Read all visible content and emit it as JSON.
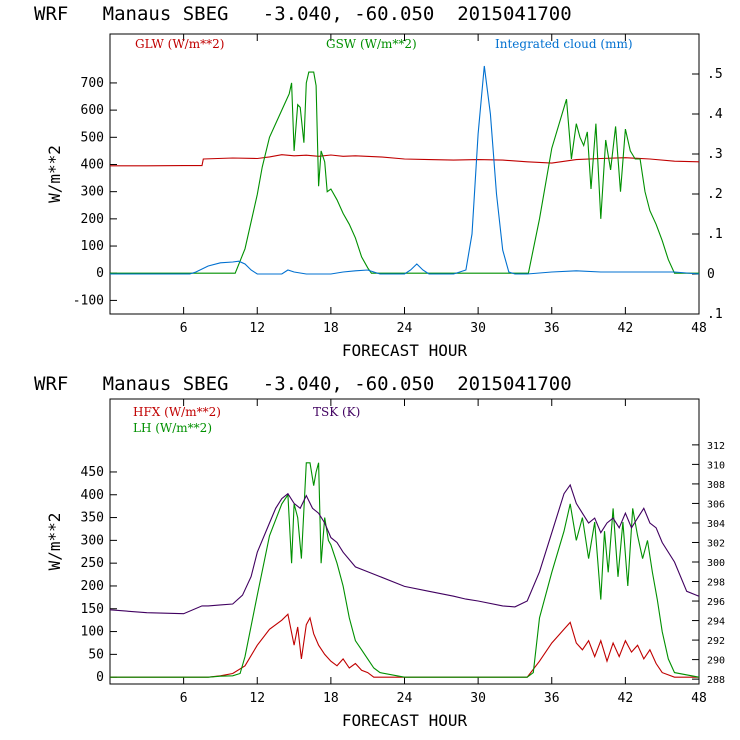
{
  "chart_data": [
    {
      "type": "line",
      "title": "WRF   Manaus SBEG   -3.040, -60.050  2015041700",
      "xlabel": "FORECAST HOUR",
      "ylabel": "W/m**2",
      "xlim": [
        0,
        48
      ],
      "ylim": [
        -150,
        880
      ],
      "y2lim": [
        -0.1,
        0.6
      ],
      "xticks": [
        6,
        12,
        18,
        24,
        30,
        36,
        42,
        48
      ],
      "xtick_labels": [
        "6",
        "12",
        "18",
        "24",
        "30",
        "36",
        "42",
        "48"
      ],
      "yticks": [
        -100,
        0,
        100,
        200,
        300,
        400,
        500,
        600,
        700
      ],
      "ytick_labels": [
        "-100",
        "0",
        "100",
        "200",
        "300",
        "400",
        "500",
        "600",
        "700"
      ],
      "y2ticks": [
        -0.1,
        0,
        0.1,
        0.2,
        0.3,
        0.4,
        0.5
      ],
      "y2tick_labels": [
        ".1",
        "0",
        ".1",
        ".2",
        ".3",
        ".4",
        ".5"
      ],
      "series": [
        {
          "name": "GLW (W/m**2)",
          "color": "#c00000",
          "axis": "left",
          "x": [
            0,
            3,
            6,
            7.5,
            7.6,
            10,
            12,
            13,
            14,
            15,
            16,
            17,
            18,
            19,
            20,
            22,
            24,
            26,
            28,
            30,
            32,
            34,
            36,
            38,
            40,
            42,
            44,
            46,
            48
          ],
          "y": [
            395,
            395,
            396,
            396,
            420,
            424,
            422,
            428,
            436,
            432,
            434,
            430,
            435,
            430,
            432,
            428,
            420,
            418,
            416,
            418,
            416,
            410,
            405,
            418,
            422,
            425,
            420,
            412,
            410
          ]
        },
        {
          "name": "GSW (W/m**2)",
          "color": "#009000",
          "axis": "left",
          "x": [
            0,
            10.2,
            11,
            12,
            12.4,
            13,
            14,
            14.6,
            14.8,
            15,
            15.3,
            15.5,
            15.8,
            16,
            16.2,
            16.6,
            16.8,
            17,
            17.2,
            17.5,
            17.7,
            18,
            18.5,
            19,
            19.5,
            20,
            20.5,
            21,
            21.3,
            21.6,
            34.1,
            35,
            36,
            37.2,
            37.6,
            38,
            38.3,
            38.6,
            38.9,
            39.2,
            39.6,
            40,
            40.4,
            40.8,
            41.2,
            41.6,
            42,
            42.4,
            42.8,
            43.2,
            43.6,
            44,
            44.5,
            45,
            45.5,
            46,
            48
          ],
          "y": [
            0,
            0,
            90,
            290,
            390,
            500,
            600,
            660,
            700,
            450,
            620,
            610,
            480,
            700,
            740,
            740,
            690,
            320,
            450,
            410,
            300,
            310,
            270,
            220,
            180,
            130,
            60,
            20,
            0,
            0,
            0,
            200,
            460,
            640,
            420,
            550,
            500,
            470,
            520,
            310,
            550,
            200,
            490,
            380,
            540,
            300,
            530,
            450,
            420,
            420,
            300,
            230,
            180,
            120,
            50,
            0,
            0
          ]
        },
        {
          "name": "Integrated cloud (mm)",
          "color": "#0070d0",
          "axis": "right",
          "x": [
            0,
            6.5,
            7,
            8,
            9,
            10,
            10.5,
            11,
            11.5,
            12,
            14,
            14.5,
            15,
            16,
            18,
            19,
            20,
            21,
            21.5,
            22,
            24,
            24.5,
            25,
            25.5,
            26,
            28,
            29,
            29.5,
            30,
            30.5,
            31,
            31.5,
            32,
            32.5,
            33,
            34,
            36,
            38,
            40,
            42,
            44,
            46,
            48
          ],
          "y": [
            0,
            0,
            0.005,
            0.02,
            0.028,
            0.03,
            0.032,
            0.025,
            0.01,
            0,
            0,
            0.01,
            0.005,
            0,
            0,
            0.005,
            0.008,
            0.01,
            0.005,
            0,
            0,
            0.01,
            0.025,
            0.01,
            0,
            0,
            0.01,
            0.1,
            0.35,
            0.52,
            0.4,
            0.2,
            0.06,
            0.005,
            0,
            0,
            0.005,
            0.008,
            0.005,
            0.005,
            0.005,
            0.005,
            0
          ]
        }
      ]
    },
    {
      "type": "line",
      "title": "WRF   Manaus SBEG   -3.040, -60.050  2015041700",
      "xlabel": "FORECAST HOUR",
      "ylabel": "W/m**2",
      "xlim": [
        0,
        48
      ],
      "ylim": [
        -15,
        610
      ],
      "y2lim": [
        287.5,
        316.7
      ],
      "xticks": [
        6,
        12,
        18,
        24,
        30,
        36,
        42,
        48
      ],
      "xtick_labels": [
        "6",
        "12",
        "18",
        "24",
        "30",
        "36",
        "42",
        "48"
      ],
      "yticks": [
        0,
        50,
        100,
        150,
        200,
        250,
        300,
        350,
        400,
        450
      ],
      "ytick_labels": [
        "0",
        "50",
        "100",
        "150",
        "200",
        "250",
        "300",
        "350",
        "400",
        "450"
      ],
      "y2ticks": [
        288,
        290,
        292,
        294,
        296,
        298,
        300,
        302,
        304,
        306,
        308,
        310,
        312
      ],
      "y2tick_labels": [
        "288",
        "290",
        "292",
        "294",
        "296",
        "298",
        "300",
        "302",
        "304",
        "306",
        "308",
        "310",
        "312"
      ],
      "series": [
        {
          "name": "HFX (W/m**2)",
          "color": "#c00000",
          "axis": "left",
          "x": [
            0,
            8,
            9,
            10,
            11,
            12,
            13,
            14,
            14.5,
            15,
            15.3,
            15.6,
            16,
            16.3,
            16.6,
            17,
            17.5,
            18,
            18.5,
            19,
            19.5,
            20,
            20.5,
            21,
            21.5,
            34,
            35,
            36,
            37,
            37.5,
            38,
            38.5,
            39,
            39.5,
            40,
            40.5,
            41,
            41.5,
            42,
            42.5,
            43,
            43.5,
            44,
            44.5,
            45,
            46,
            48
          ],
          "y": [
            0,
            0,
            3,
            8,
            25,
            70,
            105,
            125,
            138,
            70,
            110,
            40,
            115,
            130,
            95,
            70,
            50,
            35,
            25,
            40,
            20,
            30,
            15,
            10,
            0,
            0,
            35,
            75,
            105,
            120,
            75,
            60,
            80,
            45,
            80,
            35,
            75,
            45,
            80,
            55,
            70,
            40,
            60,
            30,
            10,
            0,
            0
          ]
        },
        {
          "name": "LH (W/m**2)",
          "color": "#009000",
          "axis": "left",
          "x": [
            0,
            8,
            9,
            10,
            10.6,
            11,
            12,
            13,
            14,
            14.5,
            14.8,
            15,
            15.3,
            15.6,
            16,
            16.3,
            16.6,
            16.8,
            17,
            17.2,
            17.5,
            17.8,
            18,
            18.5,
            19,
            19.5,
            20,
            20.5,
            21,
            21.5,
            22,
            24,
            34,
            34.5,
            35,
            36,
            37,
            37.5,
            38,
            38.5,
            39,
            39.5,
            40,
            40.3,
            40.6,
            41,
            41.4,
            41.8,
            42.2,
            42.6,
            43,
            43.4,
            43.8,
            44.2,
            44.6,
            45,
            45.5,
            46,
            48
          ],
          "y": [
            0,
            0,
            2,
            3,
            8,
            45,
            180,
            310,
            380,
            400,
            250,
            380,
            350,
            260,
            470,
            470,
            420,
            450,
            470,
            250,
            350,
            300,
            290,
            250,
            200,
            130,
            80,
            60,
            40,
            20,
            10,
            0,
            0,
            10,
            130,
            230,
            320,
            380,
            300,
            350,
            260,
            340,
            170,
            320,
            230,
            370,
            220,
            340,
            200,
            370,
            310,
            260,
            300,
            230,
            170,
            100,
            40,
            10,
            0
          ]
        },
        {
          "name": "TSK (K)",
          "color": "#400060",
          "axis": "right",
          "x": [
            0,
            3,
            6,
            7.5,
            8,
            9,
            10,
            10.8,
            11.5,
            12,
            13,
            13.5,
            14,
            14.5,
            15,
            15.5,
            16,
            16.5,
            17,
            17.5,
            18,
            18.5,
            19,
            20,
            21,
            22,
            24,
            26,
            28,
            29,
            30,
            32,
            33,
            34,
            35,
            36,
            37,
            37.5,
            38,
            38.5,
            39,
            39.5,
            40,
            40.5,
            41,
            41.5,
            42,
            42.5,
            43,
            43.5,
            44,
            44.5,
            45,
            46,
            47,
            48
          ],
          "y": [
            295.1,
            294.8,
            294.7,
            295.5,
            295.5,
            295.6,
            295.7,
            296.6,
            298.5,
            301,
            304,
            305.5,
            306.5,
            307,
            306,
            305.5,
            306.8,
            305.5,
            305,
            304,
            302.5,
            302,
            301,
            299.5,
            299,
            298.5,
            297.5,
            297,
            296.5,
            296.2,
            296,
            295.5,
            295.4,
            296,
            299,
            303,
            307,
            307.9,
            306,
            305,
            304,
            304.5,
            303,
            304,
            304.5,
            303.5,
            305,
            303.5,
            304.5,
            305.5,
            304,
            303.5,
            302,
            300,
            297,
            296.5
          ]
        }
      ]
    }
  ]
}
